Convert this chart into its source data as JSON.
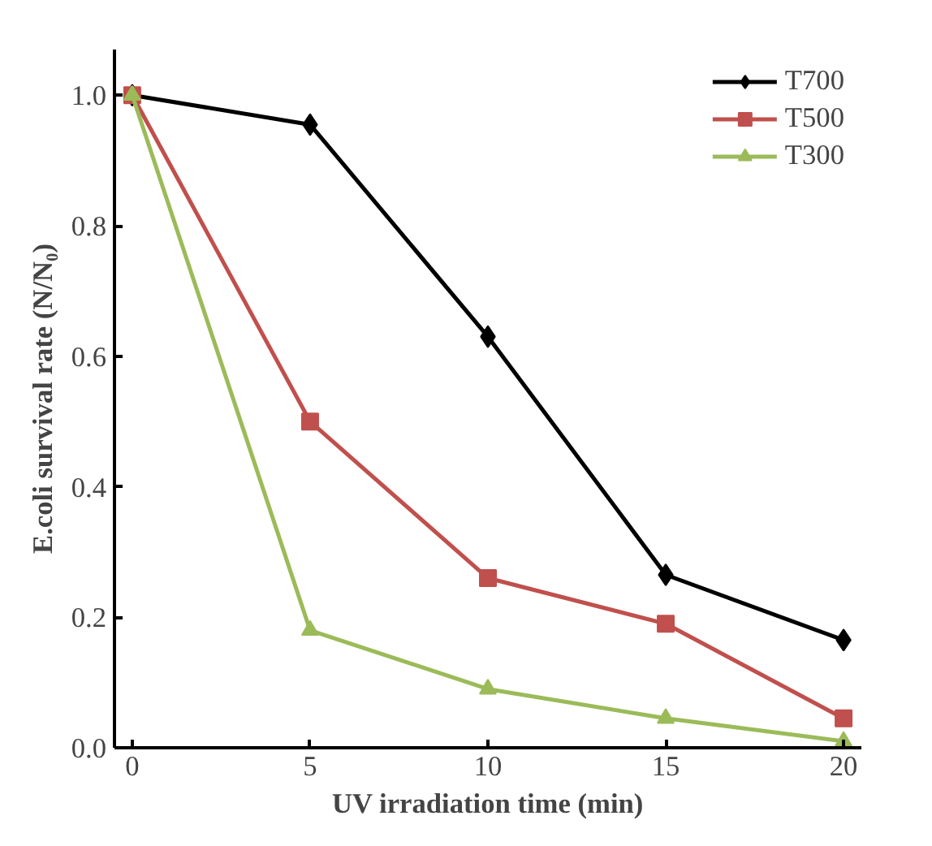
{
  "chart_data": {
    "type": "line",
    "xlabel": "UV irradiation time (min)",
    "ylabel": "E.coli survival rate (N/N₀)",
    "x": [
      0,
      5,
      10,
      15,
      20
    ],
    "series": [
      {
        "name": "T700",
        "color": "#000000",
        "marker": "diamond",
        "values": [
          1.0,
          0.955,
          0.63,
          0.265,
          0.165
        ]
      },
      {
        "name": "T500",
        "color": "#c0504d",
        "marker": "square",
        "values": [
          1.0,
          0.5,
          0.26,
          0.19,
          0.045
        ]
      },
      {
        "name": "T300",
        "color": "#9bbb59",
        "marker": "triangle",
        "values": [
          1.0,
          0.18,
          0.09,
          0.045,
          0.01
        ]
      }
    ],
    "xlim": [
      -0.5,
      20.5
    ],
    "xticks": [
      0,
      5,
      10,
      15,
      20
    ],
    "ylim": [
      0,
      1.07
    ],
    "yticks": [
      {
        "value": 0,
        "label": "0.0"
      },
      {
        "value": 0.2,
        "label": "0.2"
      },
      {
        "value": 0.4,
        "label": "0.4"
      },
      {
        "value": 0.6,
        "label": "0.6"
      },
      {
        "value": 0.8,
        "label": "0.8"
      },
      {
        "value": 1.0,
        "label": "1.0"
      }
    ],
    "grid": false,
    "legend": "top right",
    "line_style": "solid"
  }
}
